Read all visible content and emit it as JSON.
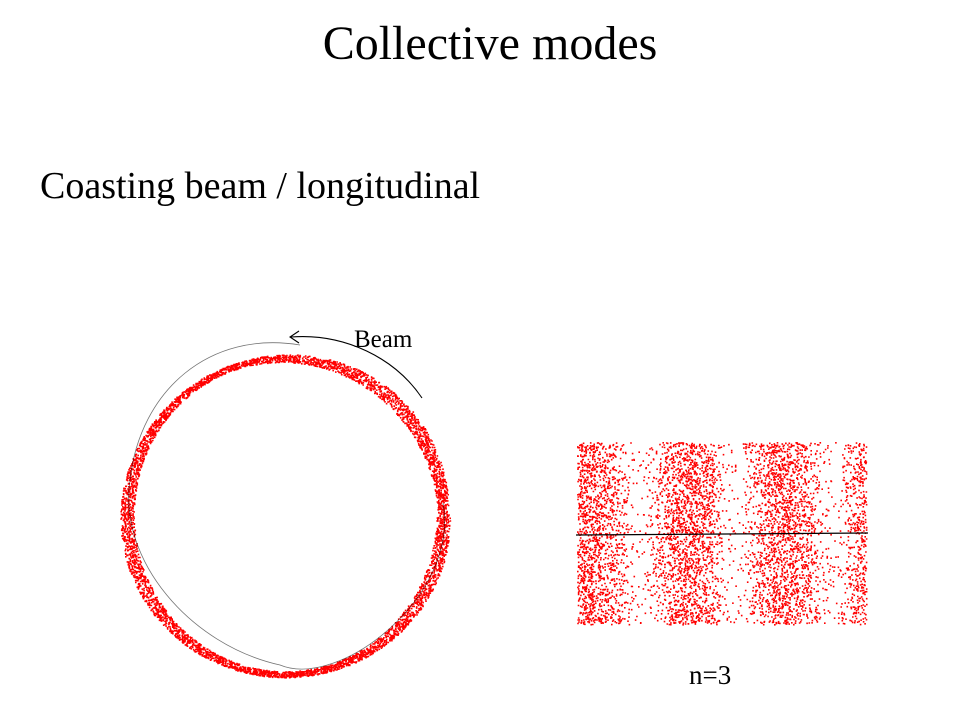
{
  "slide": {
    "title": "Collective modes",
    "subtitle": "Coasting beam / longitudinal"
  },
  "ring_diagram": {
    "direction_label": "Beam",
    "particle_color": "#ff0000"
  },
  "mode_diagram": {
    "mode_label": "n=3",
    "mode_number": 3,
    "particle_color": "#ff0000"
  }
}
